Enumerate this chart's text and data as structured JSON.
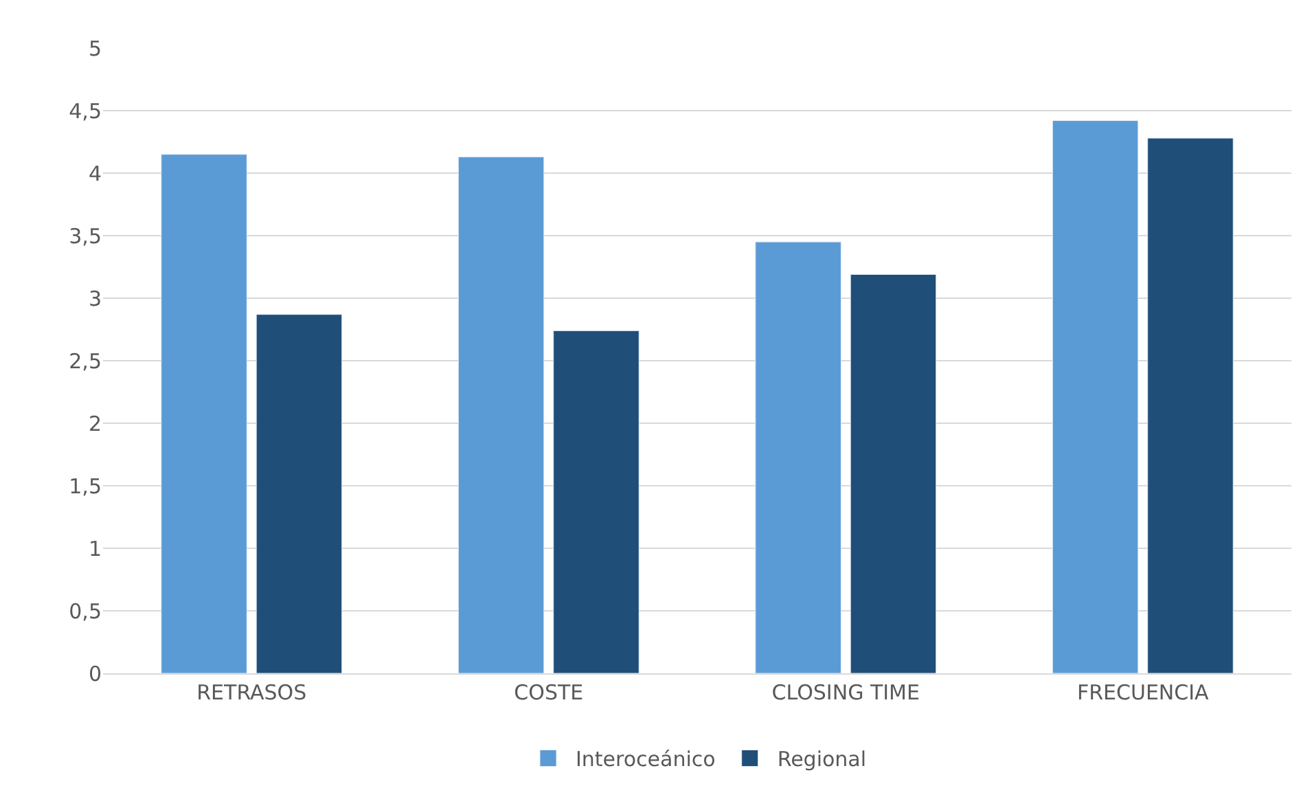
{
  "chart_data": {
    "type": "bar",
    "categories": [
      "RETRASOS",
      "COSTE",
      "CLOSING TIME",
      "FRECUENCIA"
    ],
    "series": [
      {
        "name": "Interoceánico",
        "color": "#5b9bd5",
        "values": [
          4.15,
          4.13,
          3.45,
          4.42
        ]
      },
      {
        "name": "Regional",
        "color": "#1f4e79",
        "values": [
          2.87,
          2.74,
          3.19,
          4.28
        ]
      }
    ],
    "ylim": [
      0,
      5
    ],
    "yticks": [
      0,
      {
        "value": 0.5,
        "label": "0,5"
      },
      1,
      {
        "value": 1.5,
        "label": "1,5"
      },
      2,
      {
        "value": 2.5,
        "label": "2,5"
      },
      3,
      {
        "value": 3.5,
        "label": "3,5"
      },
      4,
      {
        "value": 4.5,
        "label": "4,5"
      },
      5
    ],
    "grid": "y",
    "legend": "bottom"
  }
}
